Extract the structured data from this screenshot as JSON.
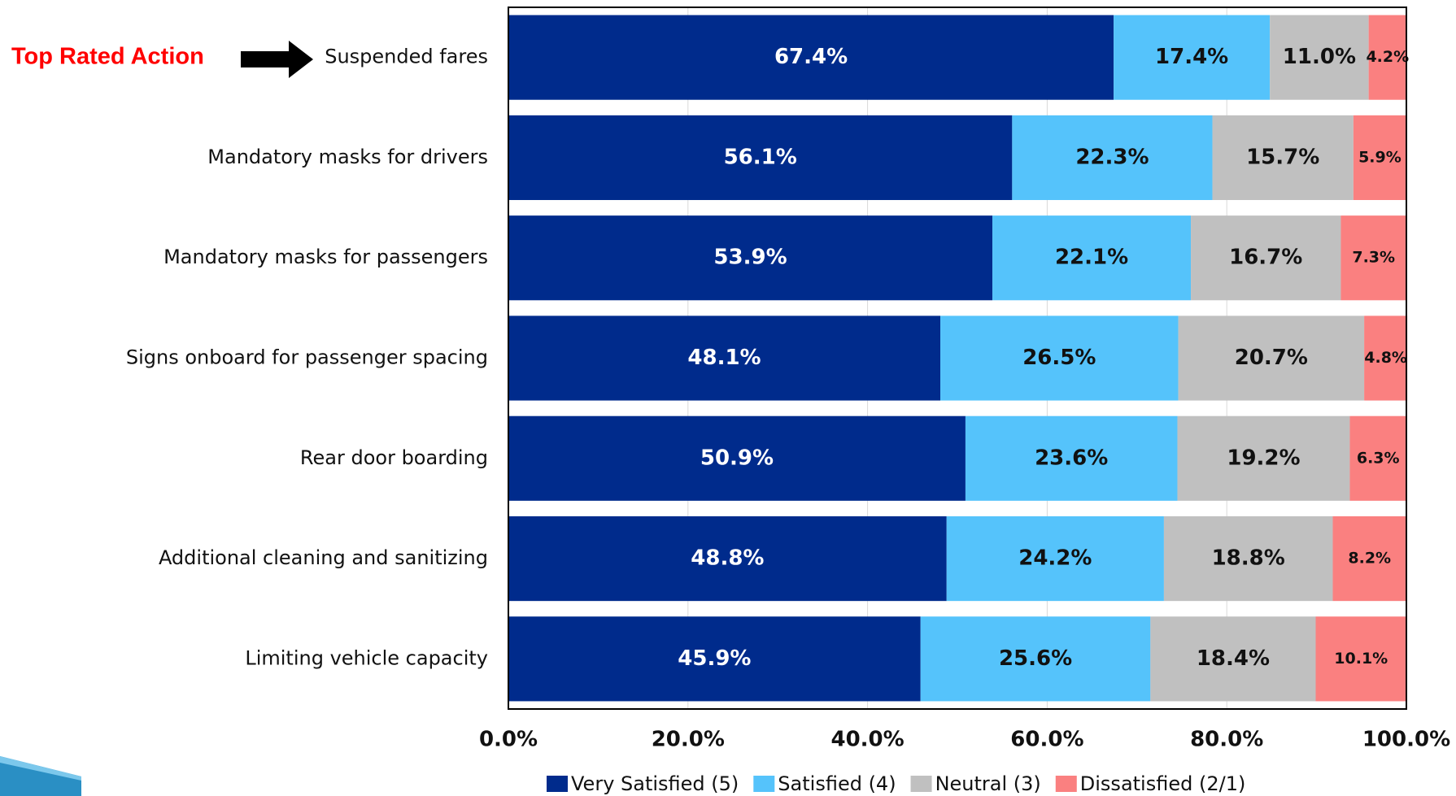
{
  "chart_data": {
    "type": "stacked-bar-horizontal",
    "annotation": "Top Rated Action",
    "categories": [
      "Suspended fares",
      "Mandatory masks for drivers",
      "Mandatory masks for passengers",
      "Signs onboard for passenger spacing",
      "Rear door boarding",
      "Additional cleaning and sanitizing",
      "Limiting vehicle capacity"
    ],
    "series": [
      {
        "name": "Very Satisfied (5)",
        "color": "#002b8c",
        "values": [
          67.4,
          56.1,
          53.9,
          48.1,
          50.9,
          48.8,
          45.9
        ],
        "value_labels": [
          "67.4%",
          "56.1%",
          "53.9%",
          "48.1%",
          "50.9%",
          "48.8%",
          "45.9%"
        ]
      },
      {
        "name": "Satisfied (4)",
        "color": "#55c3fb",
        "values": [
          17.4,
          22.3,
          22.1,
          26.5,
          23.6,
          24.2,
          25.6
        ],
        "value_labels": [
          "17.4%",
          "22.3%",
          "22.1%",
          "26.5%",
          "23.6%",
          "24.2%",
          "25.6%"
        ]
      },
      {
        "name": "Neutral (3)",
        "color": "#c0c0c0",
        "values": [
          11.0,
          15.7,
          16.7,
          20.7,
          19.2,
          18.8,
          18.4
        ],
        "value_labels": [
          "11.0%",
          "15.7%",
          "16.7%",
          "20.7%",
          "19.2%",
          "18.8%",
          "18.4%"
        ]
      },
      {
        "name": "Dissatisfied (2/1)",
        "color": "#fa8080",
        "values": [
          4.2,
          5.9,
          7.3,
          4.8,
          6.3,
          8.2,
          10.1
        ],
        "value_labels": [
          "4.2%",
          "5.9%",
          "7.3%",
          "4.8%",
          "6.3%",
          "8.2%",
          "10.1%"
        ]
      }
    ],
    "xlim": [
      0,
      100
    ],
    "xticks": [
      {
        "value": 0,
        "label": "0.0%"
      },
      {
        "value": 20,
        "label": "20.0%"
      },
      {
        "value": 40,
        "label": "40.0%"
      },
      {
        "value": 60,
        "label": "60.0%"
      },
      {
        "value": 80,
        "label": "80.0%"
      },
      {
        "value": 100,
        "label": "100.0%"
      }
    ],
    "grid": true
  }
}
